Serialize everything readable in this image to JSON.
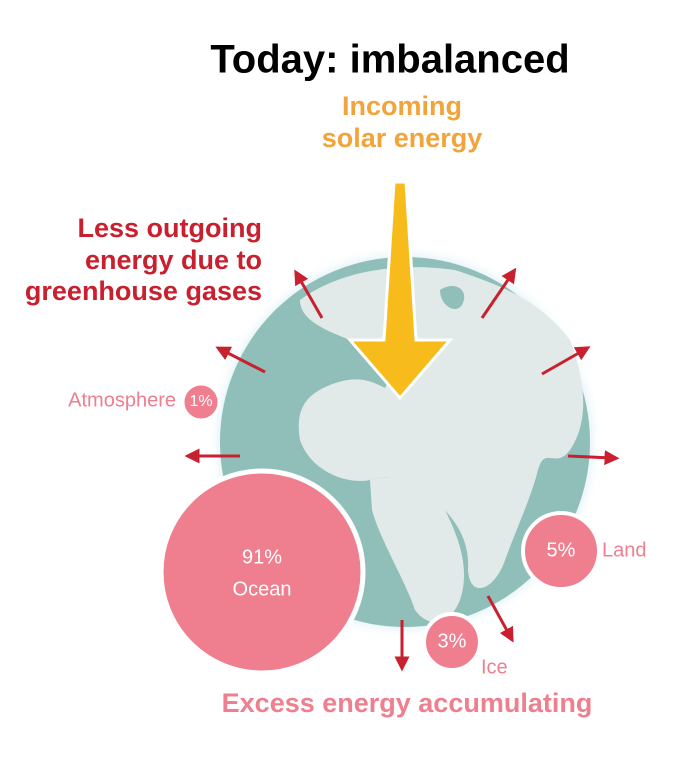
{
  "title": "Today: imbalanced",
  "incoming": [
    "Incoming",
    "solar energy"
  ],
  "outgoing": [
    "Less outgoing",
    "energy due to",
    "greenhouse gases"
  ],
  "reservoirs": [
    {
      "value": "91%",
      "name": "Ocean"
    },
    {
      "value": "5%",
      "name": "Land"
    },
    {
      "value": "3%",
      "name": "Ice"
    },
    {
      "value": "1%",
      "name": "Atmosphere"
    }
  ],
  "footer": "Excess energy accumulating"
}
